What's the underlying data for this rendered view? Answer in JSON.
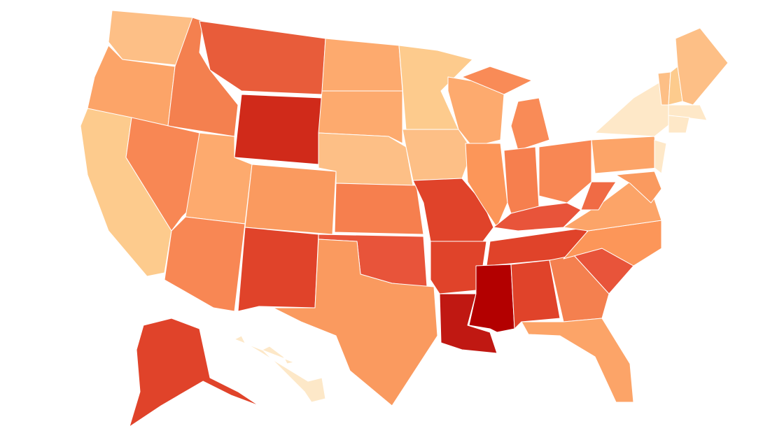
{
  "map": {
    "regions": [
      {
        "color": "#fdbf86"
      },
      {
        "color": "#fca468"
      },
      {
        "color": "#fdcb8d"
      },
      {
        "color": "#f4804f"
      },
      {
        "color": "#f88754"
      },
      {
        "color": "#e85c3a"
      },
      {
        "color": "#d02a1a"
      },
      {
        "color": "#fdaa6e"
      },
      {
        "color": "#f88754"
      },
      {
        "color": "#fa9a5f"
      },
      {
        "color": "#e0432a"
      },
      {
        "color": "#fdaa6e"
      },
      {
        "color": "#fdaa6e"
      },
      {
        "color": "#fdbf86"
      },
      {
        "color": "#f67f4e"
      },
      {
        "color": "#e8543a"
      },
      {
        "color": "#fa9a5f"
      },
      {
        "color": "#fdcb8d"
      },
      {
        "color": "#fdbf86"
      },
      {
        "color": "#e0432a"
      },
      {
        "color": "#e0432a"
      },
      {
        "color": "#c01812"
      },
      {
        "color": "#fdaa6e"
      },
      {
        "color": "#fc9659"
      },
      {
        "color": "#f98b57"
      },
      {
        "color": "#f67f4e"
      },
      {
        "color": "#f88754"
      },
      {
        "color": "#e8543a"
      },
      {
        "color": "#e0432a"
      },
      {
        "color": "#b30000"
      },
      {
        "color": "#e0432a"
      },
      {
        "color": "#f4804f"
      },
      {
        "color": "#fca468"
      },
      {
        "color": "#e8543a"
      },
      {
        "color": "#fc9659"
      },
      {
        "color": "#fca468"
      },
      {
        "color": "#f06b45"
      },
      {
        "color": "#fca468"
      },
      {
        "color": "#fee8c8"
      },
      {
        "color": "#fa9a5f"
      },
      {
        "color": "#fee8c8"
      },
      {
        "color": "#fdbf86"
      },
      {
        "color": "#fdcb8d"
      },
      {
        "color": "#fdbf86"
      },
      {
        "color": "#fee8c8"
      },
      {
        "color": "#fee8c8"
      },
      {
        "color": "#e0432a"
      },
      {
        "color": "#fde8c8"
      },
      {
        "color": "#f98b57"
      }
    ]
  }
}
